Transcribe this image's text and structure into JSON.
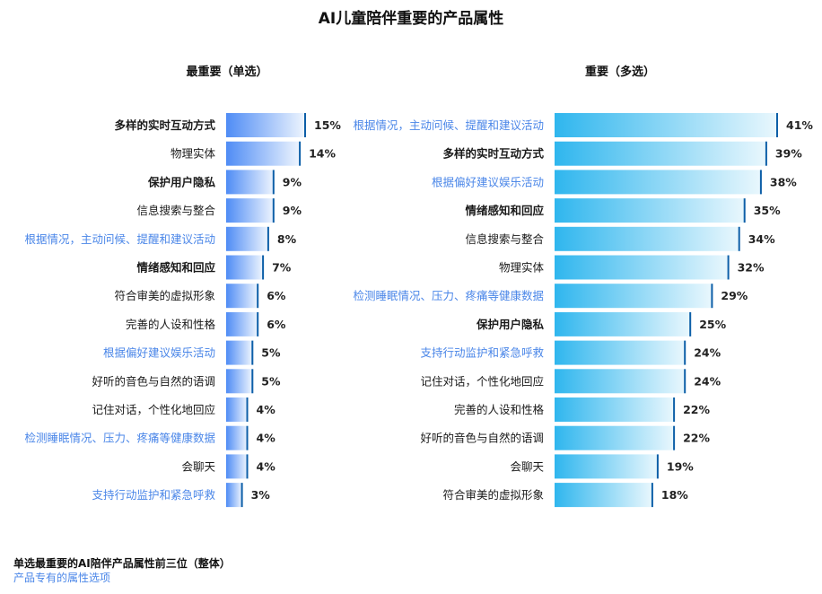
{
  "title": "AI儿童陪伴重要的产品属性",
  "colors": {
    "left_bar_start": "#4f8cf5",
    "left_bar_end": "#eef5fe",
    "right_bar_start": "#2fb6ee",
    "right_bar_end": "#e9f7fd",
    "value_line": "#0d5fa8",
    "highlight_label": "#4a86e8",
    "normal_label": "#1a1a1a"
  },
  "notes": {
    "bold_note": "单选最重要的AI陪伴产品属性前三位（整体）",
    "highlight_note": "产品专有的属性选项"
  },
  "chart_data": [
    {
      "type": "bar",
      "orientation": "horizontal",
      "title": "最重要（单选）",
      "unit": "%",
      "categories": [
        "多样的实时互动方式",
        "物理实体",
        "保护用户隐私",
        "信息搜索与整合",
        "根据情况，主动问候、提醒和建议活动",
        "情绪感知和回应",
        "符合审美的虚拟形象",
        "完善的人设和性格",
        "根据偏好建议娱乐活动",
        "好听的音色与自然的语调",
        "记住对话，个性化地回应",
        "检测睡眠情况、压力、疼痛等健康数据",
        "会聊天",
        "支持行动监护和紧急呼救"
      ],
      "values": [
        15,
        14,
        9,
        9,
        8,
        7,
        6,
        6,
        5,
        5,
        4,
        4,
        4,
        3
      ],
      "value_labels": [
        "15%",
        "14%",
        "9%",
        "9%",
        "8%",
        "7%",
        "6%",
        "6%",
        "5%",
        "5%",
        "4%",
        "4%",
        "4%",
        "3%"
      ],
      "bold": [
        true,
        false,
        true,
        false,
        false,
        true,
        false,
        false,
        false,
        false,
        false,
        false,
        false,
        false
      ],
      "highlight": [
        false,
        false,
        false,
        false,
        true,
        false,
        false,
        false,
        true,
        false,
        false,
        true,
        false,
        true
      ]
    },
    {
      "type": "bar",
      "orientation": "horizontal",
      "title": "重要（多选）",
      "unit": "%",
      "categories": [
        "根据情况，主动问候、提醒和建议活动",
        "多样的实时互动方式",
        "根据偏好建议娱乐活动",
        "情绪感知和回应",
        "信息搜索与整合",
        "物理实体",
        "检测睡眠情况、压力、疼痛等健康数据",
        "保护用户隐私",
        "支持行动监护和紧急呼救",
        "记住对话，个性化地回应",
        "完善的人设和性格",
        "好听的音色与自然的语调",
        "会聊天",
        "符合审美的虚拟形象"
      ],
      "values": [
        41,
        39,
        38,
        35,
        34,
        32,
        29,
        25,
        24,
        24,
        22,
        22,
        19,
        18
      ],
      "value_labels": [
        "41%",
        "39%",
        "38%",
        "35%",
        "34%",
        "32%",
        "29%",
        "25%",
        "24%",
        "24%",
        "22%",
        "22%",
        "19%",
        "18%"
      ],
      "bold": [
        false,
        true,
        false,
        true,
        false,
        false,
        false,
        true,
        false,
        false,
        false,
        false,
        false,
        false
      ],
      "highlight": [
        true,
        false,
        true,
        false,
        false,
        false,
        true,
        false,
        true,
        false,
        false,
        false,
        false,
        false
      ]
    }
  ]
}
